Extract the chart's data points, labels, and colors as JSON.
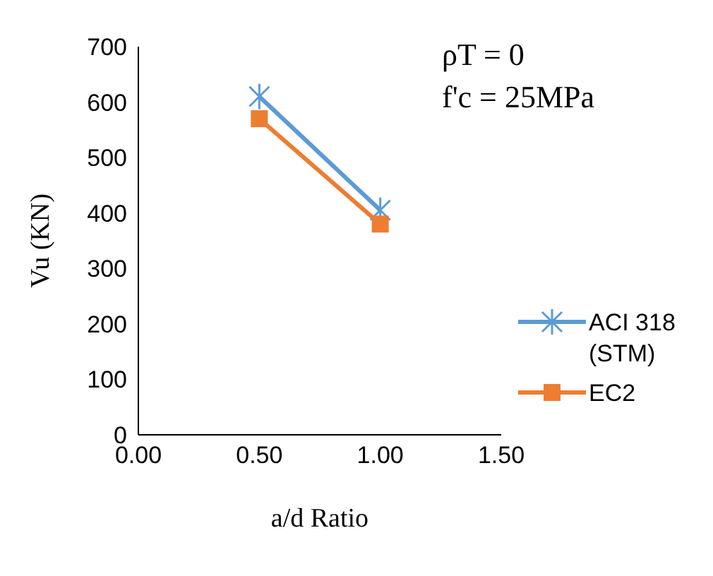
{
  "chart_data": {
    "type": "line",
    "xlabel": "a/d Ratio",
    "ylabel": "Vu (KN)",
    "x": [
      0.5,
      1.0
    ],
    "series": [
      {
        "name": "ACI 318 (STM)",
        "color": "#5b9bd5",
        "values": [
          610,
          405
        ],
        "marker": "cross"
      },
      {
        "name": "EC2",
        "color": "#ed7d31",
        "values": [
          570,
          380
        ],
        "marker": "square"
      }
    ],
    "xlim": [
      0,
      1.5
    ],
    "xticks": [
      {
        "value": 0,
        "label": "0.00"
      },
      {
        "value": 0.5,
        "label": "0.50"
      },
      {
        "value": 1,
        "label": "1.00"
      },
      {
        "value": 1.5,
        "label": "1.50"
      }
    ],
    "ylim": [
      0,
      700
    ],
    "yticks": [
      0,
      100,
      200,
      300,
      400,
      500,
      600,
      700
    ],
    "annotations": [
      "ρT = 0",
      "f'c = 25MPa"
    ],
    "legend": "right",
    "grid": false
  }
}
